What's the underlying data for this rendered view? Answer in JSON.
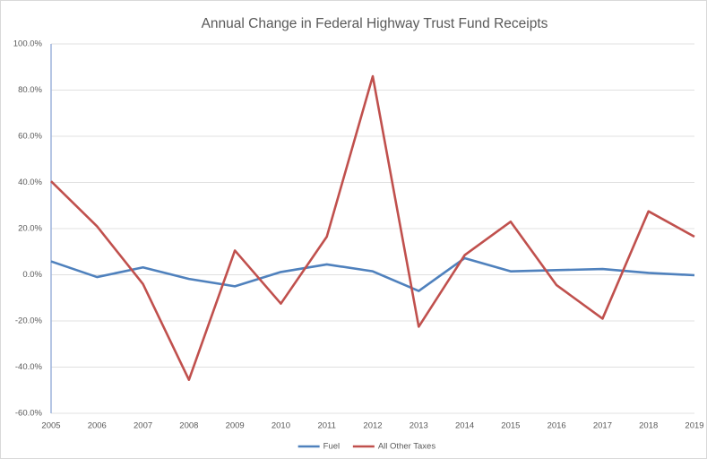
{
  "chart_data": {
    "type": "line",
    "title": "Annual Change in Federal Highway Trust Fund Receipts",
    "categories": [
      "2005",
      "2006",
      "2007",
      "2008",
      "2009",
      "2010",
      "2011",
      "2012",
      "2013",
      "2014",
      "2015",
      "2016",
      "2017",
      "2018",
      "2019"
    ],
    "series": [
      {
        "name": "Fuel",
        "color": "#4f81bd",
        "values": [
          5.8,
          -1.0,
          3.2,
          -1.8,
          -5.0,
          1.2,
          4.5,
          1.5,
          -7.0,
          7.2,
          1.5,
          2.0,
          2.5,
          0.8,
          -0.2
        ]
      },
      {
        "name": "All Other Taxes",
        "color": "#c0504d",
        "values": [
          40.5,
          21.0,
          -4.0,
          -45.5,
          10.5,
          -12.5,
          16.5,
          86.0,
          -22.5,
          8.5,
          23.0,
          -4.5,
          -19.0,
          27.5,
          16.5
        ]
      }
    ],
    "ylim": [
      -60,
      100
    ],
    "yticks": [
      {
        "value": -60,
        "label": "-60.0%"
      },
      {
        "value": -40,
        "label": "-40.0%"
      },
      {
        "value": -20,
        "label": "-20.0%"
      },
      {
        "value": 0,
        "label": "0.0%"
      },
      {
        "value": 20,
        "label": "20.0%"
      },
      {
        "value": 40,
        "label": "40.0%"
      },
      {
        "value": 60,
        "label": "60.0%"
      },
      {
        "value": 80,
        "label": "80.0%"
      },
      {
        "value": 100,
        "label": "100.0%"
      }
    ],
    "grid": true,
    "legend": "bottom"
  }
}
